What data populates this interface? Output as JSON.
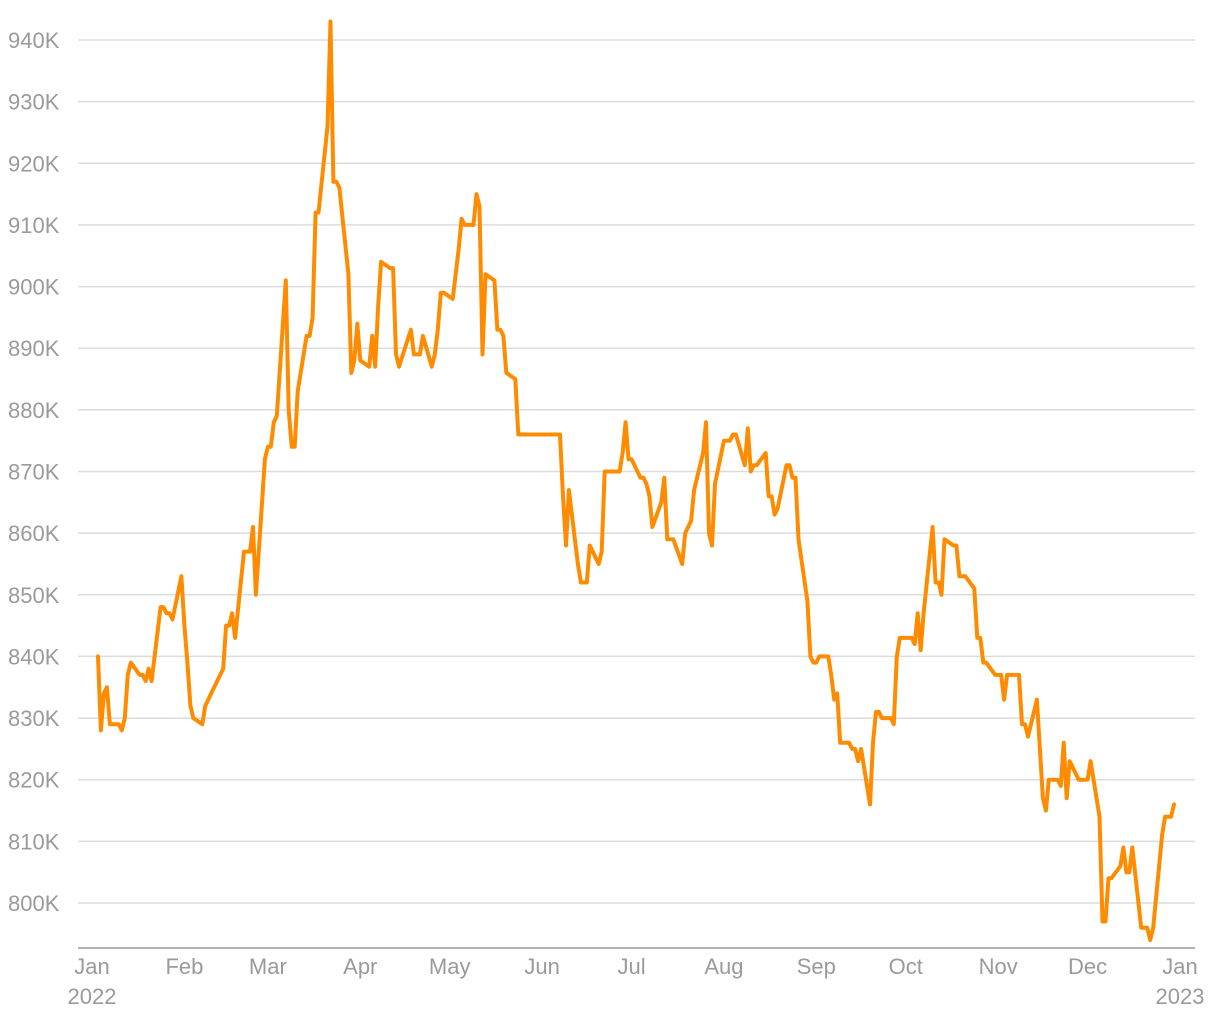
{
  "colors": {
    "series": "#FF8C00",
    "grid": "#dcdcdc",
    "text": "#9a9a9a"
  },
  "chart_data": {
    "type": "line",
    "title": "",
    "xlabel": "",
    "ylabel": "",
    "ylim": [
      794,
      943
    ],
    "grid": "horizontal",
    "legend": "none",
    "y_ticks": [
      {
        "value": 800,
        "label": "800K"
      },
      {
        "value": 810,
        "label": "810K"
      },
      {
        "value": 820,
        "label": "820K"
      },
      {
        "value": 830,
        "label": "830K"
      },
      {
        "value": 840,
        "label": "840K"
      },
      {
        "value": 850,
        "label": "850K"
      },
      {
        "value": 860,
        "label": "860K"
      },
      {
        "value": 870,
        "label": "870K"
      },
      {
        "value": 880,
        "label": "880K"
      },
      {
        "value": 890,
        "label": "890K"
      },
      {
        "value": 900,
        "label": "900K"
      },
      {
        "value": 910,
        "label": "910K"
      },
      {
        "value": 920,
        "label": "920K"
      },
      {
        "value": 930,
        "label": "930K"
      },
      {
        "value": 940,
        "label": "940K"
      }
    ],
    "x_ticks": [
      {
        "date": "2022-01-01",
        "label": "Jan",
        "sublabel": "2022"
      },
      {
        "date": "2022-02-01",
        "label": "Feb",
        "sublabel": ""
      },
      {
        "date": "2022-03-01",
        "label": "Mar",
        "sublabel": ""
      },
      {
        "date": "2022-04-01",
        "label": "Apr",
        "sublabel": ""
      },
      {
        "date": "2022-05-01",
        "label": "May",
        "sublabel": ""
      },
      {
        "date": "2022-06-01",
        "label": "Jun",
        "sublabel": ""
      },
      {
        "date": "2022-07-01",
        "label": "Jul",
        "sublabel": ""
      },
      {
        "date": "2022-08-01",
        "label": "Aug",
        "sublabel": ""
      },
      {
        "date": "2022-09-01",
        "label": "Sep",
        "sublabel": ""
      },
      {
        "date": "2022-10-01",
        "label": "Oct",
        "sublabel": ""
      },
      {
        "date": "2022-11-01",
        "label": "Nov",
        "sublabel": ""
      },
      {
        "date": "2022-12-01",
        "label": "Dec",
        "sublabel": ""
      },
      {
        "date": "2023-01-01",
        "label": "Jan",
        "sublabel": "2023"
      }
    ],
    "series": [
      {
        "values": [
          [
            "2022-01-03",
            840
          ],
          [
            "2022-01-04",
            828
          ],
          [
            "2022-01-05",
            834
          ],
          [
            "2022-01-06",
            835
          ],
          [
            "2022-01-07",
            829
          ],
          [
            "2022-01-10",
            829
          ],
          [
            "2022-01-11",
            828
          ],
          [
            "2022-01-12",
            830
          ],
          [
            "2022-01-13",
            837
          ],
          [
            "2022-01-14",
            839
          ],
          [
            "2022-01-17",
            837
          ],
          [
            "2022-01-18",
            837
          ],
          [
            "2022-01-19",
            836
          ],
          [
            "2022-01-20",
            838
          ],
          [
            "2022-01-21",
            836
          ],
          [
            "2022-01-24",
            848
          ],
          [
            "2022-01-25",
            848
          ],
          [
            "2022-01-26",
            847
          ],
          [
            "2022-01-27",
            847
          ],
          [
            "2022-01-28",
            846
          ],
          [
            "2022-01-31",
            853
          ],
          [
            "2022-02-01",
            845
          ],
          [
            "2022-02-02",
            839
          ],
          [
            "2022-02-03",
            832
          ],
          [
            "2022-02-04",
            830
          ],
          [
            "2022-02-07",
            829
          ],
          [
            "2022-02-08",
            832
          ],
          [
            "2022-02-09",
            833
          ],
          [
            "2022-02-10",
            834
          ],
          [
            "2022-02-11",
            835
          ],
          [
            "2022-02-14",
            838
          ],
          [
            "2022-02-15",
            845
          ],
          [
            "2022-02-16",
            845
          ],
          [
            "2022-02-17",
            847
          ],
          [
            "2022-02-18",
            843
          ],
          [
            "2022-02-21",
            857
          ],
          [
            "2022-02-22",
            857
          ],
          [
            "2022-02-23",
            857
          ],
          [
            "2022-02-24",
            861
          ],
          [
            "2022-02-25",
            850
          ],
          [
            "2022-02-28",
            872
          ],
          [
            "2022-03-01",
            874
          ],
          [
            "2022-03-02",
            874
          ],
          [
            "2022-03-03",
            878
          ],
          [
            "2022-03-04",
            879
          ],
          [
            "2022-03-07",
            901
          ],
          [
            "2022-03-08",
            880
          ],
          [
            "2022-03-09",
            874
          ],
          [
            "2022-03-10",
            874
          ],
          [
            "2022-03-11",
            883
          ],
          [
            "2022-03-14",
            892
          ],
          [
            "2022-03-15",
            892
          ],
          [
            "2022-03-16",
            895
          ],
          [
            "2022-03-17",
            912
          ],
          [
            "2022-03-18",
            912
          ],
          [
            "2022-03-21",
            926
          ],
          [
            "2022-03-22",
            943
          ],
          [
            "2022-03-23",
            917
          ],
          [
            "2022-03-24",
            917
          ],
          [
            "2022-03-25",
            916
          ],
          [
            "2022-03-28",
            902
          ],
          [
            "2022-03-29",
            886
          ],
          [
            "2022-03-30",
            888
          ],
          [
            "2022-03-31",
            894
          ],
          [
            "2022-04-01",
            888
          ],
          [
            "2022-04-04",
            887
          ],
          [
            "2022-04-05",
            892
          ],
          [
            "2022-04-06",
            887
          ],
          [
            "2022-04-07",
            897
          ],
          [
            "2022-04-08",
            904
          ],
          [
            "2022-04-11",
            903
          ],
          [
            "2022-04-12",
            903
          ],
          [
            "2022-04-13",
            889
          ],
          [
            "2022-04-14",
            887
          ],
          [
            "2022-04-18",
            893
          ],
          [
            "2022-04-19",
            889
          ],
          [
            "2022-04-20",
            889
          ],
          [
            "2022-04-21",
            889
          ],
          [
            "2022-04-22",
            892
          ],
          [
            "2022-04-25",
            887
          ],
          [
            "2022-04-26",
            889
          ],
          [
            "2022-04-27",
            893
          ],
          [
            "2022-04-28",
            899
          ],
          [
            "2022-04-29",
            899
          ],
          [
            "2022-05-02",
            898
          ],
          [
            "2022-05-03",
            902
          ],
          [
            "2022-05-04",
            906
          ],
          [
            "2022-05-05",
            911
          ],
          [
            "2022-05-06",
            910
          ],
          [
            "2022-05-09",
            910
          ],
          [
            "2022-05-10",
            915
          ],
          [
            "2022-05-11",
            913
          ],
          [
            "2022-05-12",
            889
          ],
          [
            "2022-05-13",
            902
          ],
          [
            "2022-05-16",
            901
          ],
          [
            "2022-05-17",
            893
          ],
          [
            "2022-05-18",
            893
          ],
          [
            "2022-05-19",
            892
          ],
          [
            "2022-05-20",
            886
          ],
          [
            "2022-05-23",
            885
          ],
          [
            "2022-05-24",
            876
          ],
          [
            "2022-05-25",
            876
          ],
          [
            "2022-05-26",
            876
          ],
          [
            "2022-05-27",
            876
          ],
          [
            "2022-05-30",
            876
          ],
          [
            "2022-05-31",
            876
          ],
          [
            "2022-06-01",
            876
          ],
          [
            "2022-06-02",
            876
          ],
          [
            "2022-06-03",
            876
          ],
          [
            "2022-06-06",
            876
          ],
          [
            "2022-06-07",
            876
          ],
          [
            "2022-06-08",
            866
          ],
          [
            "2022-06-09",
            858
          ],
          [
            "2022-06-10",
            867
          ],
          [
            "2022-06-13",
            855
          ],
          [
            "2022-06-14",
            852
          ],
          [
            "2022-06-15",
            852
          ],
          [
            "2022-06-16",
            852
          ],
          [
            "2022-06-17",
            858
          ],
          [
            "2022-06-20",
            855
          ],
          [
            "2022-06-21",
            857
          ],
          [
            "2022-06-22",
            870
          ],
          [
            "2022-06-23",
            870
          ],
          [
            "2022-06-24",
            870
          ],
          [
            "2022-06-27",
            870
          ],
          [
            "2022-06-28",
            873
          ],
          [
            "2022-06-29",
            878
          ],
          [
            "2022-06-30",
            872
          ],
          [
            "2022-07-01",
            872
          ],
          [
            "2022-07-04",
            869
          ],
          [
            "2022-07-05",
            869
          ],
          [
            "2022-07-06",
            868
          ],
          [
            "2022-07-07",
            866
          ],
          [
            "2022-07-08",
            861
          ],
          [
            "2022-07-11",
            865
          ],
          [
            "2022-07-12",
            869
          ],
          [
            "2022-07-13",
            859
          ],
          [
            "2022-07-14",
            859
          ],
          [
            "2022-07-15",
            859
          ],
          [
            "2022-07-18",
            855
          ],
          [
            "2022-07-19",
            860
          ],
          [
            "2022-07-20",
            861
          ],
          [
            "2022-07-21",
            862
          ],
          [
            "2022-07-22",
            867
          ],
          [
            "2022-07-25",
            873
          ],
          [
            "2022-07-26",
            878
          ],
          [
            "2022-07-27",
            860
          ],
          [
            "2022-07-28",
            858
          ],
          [
            "2022-07-29",
            868
          ],
          [
            "2022-08-01",
            875
          ],
          [
            "2022-08-02",
            875
          ],
          [
            "2022-08-03",
            875
          ],
          [
            "2022-08-04",
            876
          ],
          [
            "2022-08-05",
            876
          ],
          [
            "2022-08-08",
            871
          ],
          [
            "2022-08-09",
            877
          ],
          [
            "2022-08-10",
            870
          ],
          [
            "2022-08-11",
            871
          ],
          [
            "2022-08-12",
            871
          ],
          [
            "2022-08-15",
            873
          ],
          [
            "2022-08-16",
            866
          ],
          [
            "2022-08-17",
            866
          ],
          [
            "2022-08-18",
            863
          ],
          [
            "2022-08-19",
            864
          ],
          [
            "2022-08-22",
            871
          ],
          [
            "2022-08-23",
            871
          ],
          [
            "2022-08-24",
            869
          ],
          [
            "2022-08-25",
            869
          ],
          [
            "2022-08-26",
            859
          ],
          [
            "2022-08-29",
            849
          ],
          [
            "2022-08-30",
            840
          ],
          [
            "2022-08-31",
            839
          ],
          [
            "2022-09-01",
            839
          ],
          [
            "2022-09-02",
            840
          ],
          [
            "2022-09-05",
            840
          ],
          [
            "2022-09-06",
            837
          ],
          [
            "2022-09-07",
            833
          ],
          [
            "2022-09-08",
            834
          ],
          [
            "2022-09-09",
            826
          ],
          [
            "2022-09-12",
            826
          ],
          [
            "2022-09-13",
            825
          ],
          [
            "2022-09-14",
            825
          ],
          [
            "2022-09-15",
            823
          ],
          [
            "2022-09-16",
            825
          ],
          [
            "2022-09-19",
            816
          ],
          [
            "2022-09-20",
            826
          ],
          [
            "2022-09-21",
            831
          ],
          [
            "2022-09-22",
            831
          ],
          [
            "2022-09-23",
            830
          ],
          [
            "2022-09-26",
            830
          ],
          [
            "2022-09-27",
            829
          ],
          [
            "2022-09-28",
            840
          ],
          [
            "2022-09-29",
            843
          ],
          [
            "2022-09-30",
            843
          ],
          [
            "2022-10-03",
            843
          ],
          [
            "2022-10-04",
            842
          ],
          [
            "2022-10-05",
            847
          ],
          [
            "2022-10-06",
            841
          ],
          [
            "2022-10-07",
            847
          ],
          [
            "2022-10-10",
            861
          ],
          [
            "2022-10-11",
            852
          ],
          [
            "2022-10-12",
            852
          ],
          [
            "2022-10-13",
            850
          ],
          [
            "2022-10-14",
            859
          ],
          [
            "2022-10-17",
            858
          ],
          [
            "2022-10-18",
            858
          ],
          [
            "2022-10-19",
            853
          ],
          [
            "2022-10-20",
            853
          ],
          [
            "2022-10-21",
            853
          ],
          [
            "2022-10-24",
            851
          ],
          [
            "2022-10-25",
            843
          ],
          [
            "2022-10-26",
            843
          ],
          [
            "2022-10-27",
            839
          ],
          [
            "2022-10-28",
            839
          ],
          [
            "2022-10-31",
            837
          ],
          [
            "2022-11-01",
            837
          ],
          [
            "2022-11-02",
            837
          ],
          [
            "2022-11-03",
            833
          ],
          [
            "2022-11-04",
            837
          ],
          [
            "2022-11-07",
            837
          ],
          [
            "2022-11-08",
            837
          ],
          [
            "2022-11-09",
            829
          ],
          [
            "2022-11-10",
            829
          ],
          [
            "2022-11-11",
            827
          ],
          [
            "2022-11-14",
            833
          ],
          [
            "2022-11-15",
            825
          ],
          [
            "2022-11-16",
            817
          ],
          [
            "2022-11-17",
            815
          ],
          [
            "2022-11-18",
            820
          ],
          [
            "2022-11-21",
            820
          ],
          [
            "2022-11-22",
            819
          ],
          [
            "2022-11-23",
            826
          ],
          [
            "2022-11-24",
            817
          ],
          [
            "2022-11-25",
            823
          ],
          [
            "2022-11-28",
            820
          ],
          [
            "2022-11-29",
            820
          ],
          [
            "2022-11-30",
            820
          ],
          [
            "2022-12-01",
            820
          ],
          [
            "2022-12-02",
            823
          ],
          [
            "2022-12-05",
            814
          ],
          [
            "2022-12-06",
            797
          ],
          [
            "2022-12-07",
            797
          ],
          [
            "2022-12-08",
            804
          ],
          [
            "2022-12-09",
            804
          ],
          [
            "2022-12-12",
            806
          ],
          [
            "2022-12-13",
            809
          ],
          [
            "2022-12-14",
            805
          ],
          [
            "2022-12-15",
            805
          ],
          [
            "2022-12-16",
            809
          ],
          [
            "2022-12-19",
            796
          ],
          [
            "2022-12-20",
            796
          ],
          [
            "2022-12-21",
            796
          ],
          [
            "2022-12-22",
            794
          ],
          [
            "2022-12-23",
            796
          ],
          [
            "2022-12-26",
            811
          ]
        ],
        "values_2": [
          [
            "2022-12-27",
            814
          ],
          [
            "2022-12-28",
            814
          ],
          [
            "2022-12-29",
            814
          ],
          [
            "2022-12-30",
            816
          ]
        ]
      }
    ]
  }
}
